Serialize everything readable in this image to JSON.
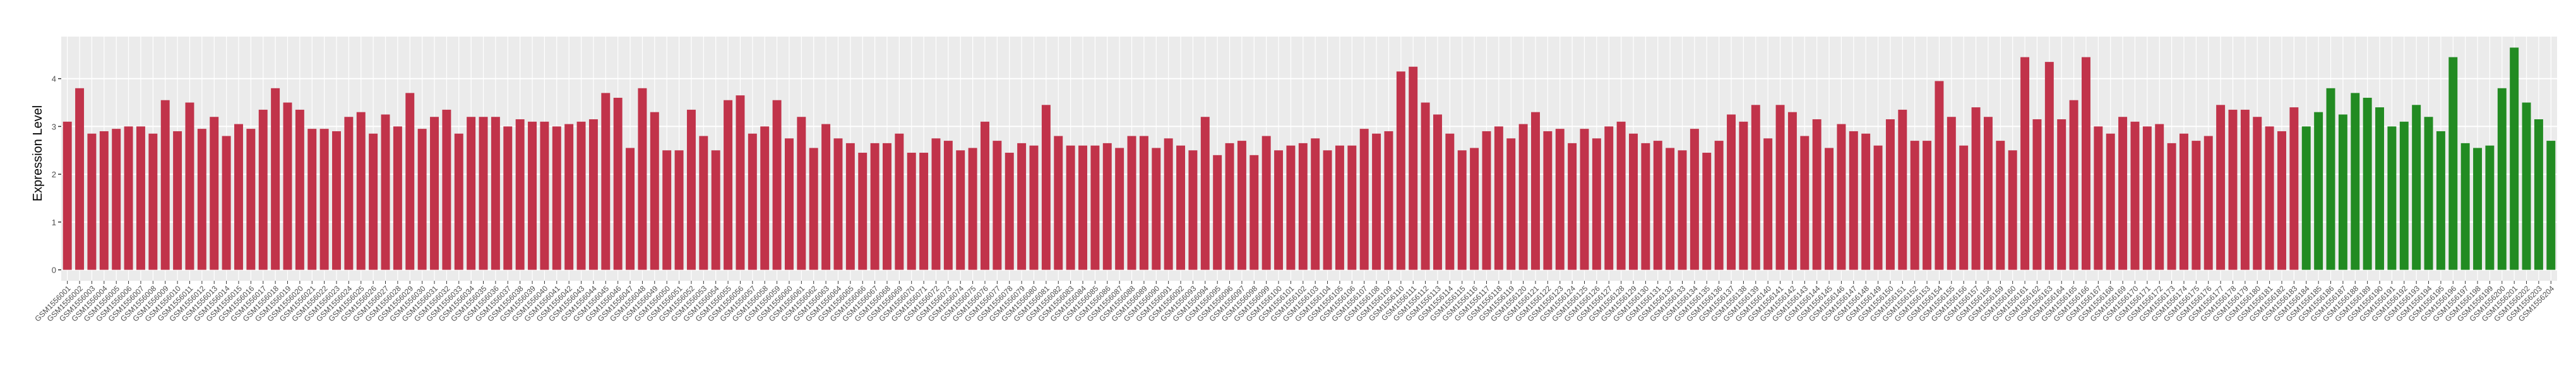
{
  "chart_data": {
    "type": "bar",
    "y_label": "Expression Level",
    "categories": [
      "GSM1556001",
      "GSM1556002",
      "GSM1556003",
      "GSM1556004",
      "GSM1556005",
      "GSM1556006",
      "GSM1556007",
      "GSM1556008",
      "GSM1556009",
      "GSM1556010",
      "GSM1556011",
      "GSM1556012",
      "GSM1556013",
      "GSM1556014",
      "GSM1556015",
      "GSM1556016",
      "GSM1556017",
      "GSM1556018",
      "GSM1556019",
      "GSM1556020",
      "GSM1556021",
      "GSM1556022",
      "GSM1556023",
      "GSM1556024",
      "GSM1556025",
      "GSM1556026",
      "GSM1556027",
      "GSM1556028",
      "GSM1556029",
      "GSM1556030",
      "GSM1556031",
      "GSM1556032",
      "GSM1556033",
      "GSM1556034",
      "GSM1556035",
      "GSM1556036",
      "GSM1556037",
      "GSM1556038",
      "GSM1556039",
      "GSM1556040",
      "GSM1556041",
      "GSM1556042",
      "GSM1556043",
      "GSM1556044",
      "GSM1556045",
      "GSM1556046",
      "GSM1556047",
      "GSM1556048",
      "GSM1556049",
      "GSM1556050",
      "GSM1556051",
      "GSM1556052",
      "GSM1556053",
      "GSM1556054",
      "GSM1556055",
      "GSM1556056",
      "GSM1556057",
      "GSM1556058",
      "GSM1556059",
      "GSM1556060",
      "GSM1556061",
      "GSM1556062",
      "GSM1556063",
      "GSM1556064",
      "GSM1556065",
      "GSM1556066",
      "GSM1556067",
      "GSM1556068",
      "GSM1556069",
      "GSM1556070",
      "GSM1556071",
      "GSM1556072",
      "GSM1556073",
      "GSM1556074",
      "GSM1556075",
      "GSM1556076",
      "GSM1556077",
      "GSM1556078",
      "GSM1556079",
      "GSM1556080",
      "GSM1556081",
      "GSM1556082",
      "GSM1556083",
      "GSM1556084",
      "GSM1556085",
      "GSM1556086",
      "GSM1556087",
      "GSM1556088",
      "GSM1556089",
      "GSM1556090",
      "GSM1556091",
      "GSM1556092",
      "GSM1556093",
      "GSM1556094",
      "GSM1556095",
      "GSM1556096",
      "GSM1556097",
      "GSM1556098",
      "GSM1556099",
      "GSM1556100",
      "GSM1556101",
      "GSM1556102",
      "GSM1556103",
      "GSM1556104",
      "GSM1556105",
      "GSM1556106",
      "GSM1556107",
      "GSM1556108",
      "GSM1556109",
      "GSM1556110",
      "GSM1556111",
      "GSM1556112",
      "GSM1556113",
      "GSM1556114",
      "GSM1556115",
      "GSM1556116",
      "GSM1556117",
      "GSM1556118",
      "GSM1556119",
      "GSM1556120",
      "GSM1556121",
      "GSM1556122",
      "GSM1556123",
      "GSM1556124",
      "GSM1556125",
      "GSM1556126",
      "GSM1556127",
      "GSM1556128",
      "GSM1556129",
      "GSM1556130",
      "GSM1556131",
      "GSM1556132",
      "GSM1556133",
      "GSM1556134",
      "GSM1556135",
      "GSM1556136",
      "GSM1556137",
      "GSM1556138",
      "GSM1556139",
      "GSM1556140",
      "GSM1556141",
      "GSM1556142",
      "GSM1556143",
      "GSM1556144",
      "GSM1556145",
      "GSM1556146",
      "GSM1556147",
      "GSM1556148",
      "GSM1556149",
      "GSM1556150",
      "GSM1556151",
      "GSM1556152",
      "GSM1556153",
      "GSM1556154",
      "GSM1556155",
      "GSM1556156",
      "GSM1556157",
      "GSM1556158",
      "GSM1556159",
      "GSM1556160",
      "GSM1556161",
      "GSM1556162",
      "GSM1556163",
      "GSM1556164",
      "GSM1556165",
      "GSM1556166",
      "GSM1556167",
      "GSM1556168",
      "GSM1556169",
      "GSM1556170",
      "GSM1556171",
      "GSM1556172",
      "GSM1556173",
      "GSM1556174",
      "GSM1556175",
      "GSM1556176",
      "GSM1556177",
      "GSM1556178",
      "GSM1556179",
      "GSM1556180",
      "GSM1556181",
      "GSM1556182",
      "GSM1556183",
      "GSM1556184",
      "GSM1556185",
      "GSM1556186",
      "GSM1556187",
      "GSM1556188",
      "GSM1556189",
      "GSM1556190",
      "GSM1556191",
      "GSM1556192",
      "GSM1556193",
      "GSM1556194",
      "GSM1556195",
      "GSM1556196",
      "GSM1556197",
      "GSM1556198",
      "GSM1556199",
      "GSM1556200",
      "GSM1556201",
      "GSM1556202",
      "GSM1556203",
      "GSM1556204"
    ],
    "values": [
      3.1,
      3.8,
      2.85,
      2.9,
      2.95,
      3.0,
      3.0,
      2.85,
      3.55,
      2.9,
      3.5,
      2.95,
      3.2,
      2.8,
      3.05,
      2.95,
      3.35,
      3.8,
      3.5,
      3.35,
      2.95,
      2.95,
      2.9,
      3.2,
      3.3,
      2.85,
      3.25,
      3.0,
      3.7,
      2.95,
      3.2,
      3.35,
      2.85,
      3.2,
      3.2,
      3.2,
      3.0,
      3.15,
      3.1,
      3.1,
      3.0,
      3.05,
      3.1,
      3.15,
      3.7,
      3.6,
      2.55,
      3.8,
      3.3,
      2.5,
      2.5,
      3.35,
      2.8,
      2.5,
      3.55,
      3.65,
      2.85,
      3.0,
      3.55,
      2.75,
      3.2,
      2.55,
      3.05,
      2.75,
      2.65,
      2.45,
      2.65,
      2.65,
      2.85,
      2.45,
      2.45,
      2.75,
      2.7,
      2.5,
      2.55,
      3.1,
      2.7,
      2.45,
      2.65,
      2.6,
      3.45,
      2.8,
      2.6,
      2.6,
      2.6,
      2.65,
      2.55,
      2.8,
      2.8,
      2.55,
      2.75,
      2.6,
      2.5,
      3.2,
      2.4,
      2.65,
      2.7,
      2.4,
      2.8,
      2.5,
      2.6,
      2.65,
      2.75,
      2.5,
      2.6,
      2.6,
      2.95,
      2.85,
      2.9,
      4.15,
      4.25,
      3.5,
      3.25,
      2.85,
      2.5,
      2.55,
      2.9,
      3.0,
      2.75,
      3.05,
      3.3,
      2.9,
      2.95,
      2.65,
      2.95,
      2.75,
      3.0,
      3.1,
      2.85,
      2.65,
      2.7,
      2.55,
      2.5,
      2.95,
      2.45,
      2.7,
      3.25,
      3.1,
      3.45,
      2.75,
      3.45,
      3.3,
      2.8,
      3.15,
      2.55,
      3.05,
      2.9,
      2.85,
      2.6,
      3.15,
      3.35,
      2.7,
      2.7,
      3.95,
      3.2,
      2.6,
      3.4,
      3.2,
      2.7,
      2.5,
      4.45,
      3.15,
      4.35,
      3.15,
      3.55,
      4.45,
      3.0,
      2.85,
      3.2,
      3.1,
      3.0,
      3.05,
      2.65,
      2.85,
      2.7,
      2.8,
      3.45,
      3.35,
      3.35,
      3.2,
      3.0,
      2.9,
      3.4,
      3.0,
      3.3,
      3.8,
      3.25,
      3.7,
      3.6,
      3.4,
      3.0,
      3.1,
      3.45,
      3.2,
      2.9,
      4.45,
      2.65,
      2.55,
      2.6,
      3.8,
      4.65,
      3.5,
      3.15,
      2.7
    ],
    "colors": [
      "#c1334a",
      "#c1334a",
      "#c1334a",
      "#c1334a",
      "#c1334a",
      "#c1334a",
      "#c1334a",
      "#c1334a",
      "#c1334a",
      "#c1334a",
      "#c1334a",
      "#c1334a",
      "#c1334a",
      "#c1334a",
      "#c1334a",
      "#c1334a",
      "#c1334a",
      "#c1334a",
      "#c1334a",
      "#c1334a",
      "#c1334a",
      "#c1334a",
      "#c1334a",
      "#c1334a",
      "#c1334a",
      "#c1334a",
      "#c1334a",
      "#c1334a",
      "#c1334a",
      "#c1334a",
      "#c1334a",
      "#c1334a",
      "#c1334a",
      "#c1334a",
      "#c1334a",
      "#c1334a",
      "#c1334a",
      "#c1334a",
      "#c1334a",
      "#c1334a",
      "#c1334a",
      "#c1334a",
      "#c1334a",
      "#c1334a",
      "#c1334a",
      "#c1334a",
      "#c1334a",
      "#c1334a",
      "#c1334a",
      "#c1334a",
      "#c1334a",
      "#c1334a",
      "#c1334a",
      "#c1334a",
      "#c1334a",
      "#c1334a",
      "#c1334a",
      "#c1334a",
      "#c1334a",
      "#c1334a",
      "#c1334a",
      "#c1334a",
      "#c1334a",
      "#c1334a",
      "#c1334a",
      "#c1334a",
      "#c1334a",
      "#c1334a",
      "#c1334a",
      "#c1334a",
      "#c1334a",
      "#c1334a",
      "#c1334a",
      "#c1334a",
      "#c1334a",
      "#c1334a",
      "#c1334a",
      "#c1334a",
      "#c1334a",
      "#c1334a",
      "#c1334a",
      "#c1334a",
      "#c1334a",
      "#c1334a",
      "#c1334a",
      "#c1334a",
      "#c1334a",
      "#c1334a",
      "#c1334a",
      "#c1334a",
      "#c1334a",
      "#c1334a",
      "#c1334a",
      "#c1334a",
      "#c1334a",
      "#c1334a",
      "#c1334a",
      "#c1334a",
      "#c1334a",
      "#c1334a",
      "#c1334a",
      "#c1334a",
      "#c1334a",
      "#c1334a",
      "#c1334a",
      "#c1334a",
      "#c1334a",
      "#c1334a",
      "#c1334a",
      "#c1334a",
      "#c1334a",
      "#c1334a",
      "#c1334a",
      "#c1334a",
      "#c1334a",
      "#c1334a",
      "#c1334a",
      "#c1334a",
      "#c1334a",
      "#c1334a",
      "#c1334a",
      "#c1334a",
      "#c1334a",
      "#c1334a",
      "#c1334a",
      "#c1334a",
      "#c1334a",
      "#c1334a",
      "#c1334a",
      "#c1334a",
      "#c1334a",
      "#c1334a",
      "#c1334a",
      "#c1334a",
      "#c1334a",
      "#c1334a",
      "#c1334a",
      "#c1334a",
      "#c1334a",
      "#c1334a",
      "#c1334a",
      "#c1334a",
      "#c1334a",
      "#c1334a",
      "#c1334a",
      "#c1334a",
      "#c1334a",
      "#c1334a",
      "#c1334a",
      "#c1334a",
      "#c1334a",
      "#c1334a",
      "#c1334a",
      "#c1334a",
      "#c1334a",
      "#c1334a",
      "#c1334a",
      "#c1334a",
      "#c1334a",
      "#c1334a",
      "#c1334a",
      "#c1334a",
      "#c1334a",
      "#c1334a",
      "#c1334a",
      "#c1334a",
      "#c1334a",
      "#c1334a",
      "#c1334a",
      "#c1334a",
      "#c1334a",
      "#c1334a",
      "#c1334a",
      "#c1334a",
      "#c1334a",
      "#c1334a",
      "#c1334a",
      "#c1334a",
      "#c1334a",
      "#c1334a",
      "#c1334a",
      "#c1334a",
      "#c1334a",
      "#228b22",
      "#228b22",
      "#228b22",
      "#228b22",
      "#228b22",
      "#228b22",
      "#228b22",
      "#228b22",
      "#228b22",
      "#228b22",
      "#228b22",
      "#228b22",
      "#228b22",
      "#228b22",
      "#228b22",
      "#228b22",
      "#228b22",
      "#228b22",
      "#228b22",
      "#228b22",
      "#228b22"
    ],
    "ylim": [
      -0.23,
      4.88
    ],
    "yticks": [
      0,
      1,
      2,
      3,
      4
    ],
    "grid": true
  }
}
